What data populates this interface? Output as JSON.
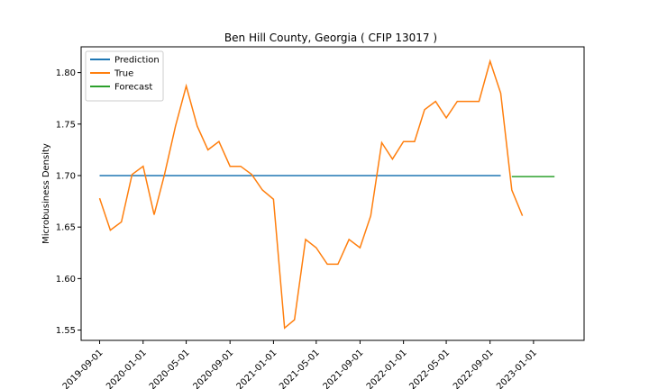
{
  "chart_data": {
    "type": "line",
    "title": "Ben Hill County, Georgia ( CFIP 13017 )",
    "xlabel": "",
    "ylabel": "Microbusiness Density",
    "ylim": [
      1.54,
      1.825
    ],
    "xlim": [
      "2019-07-11",
      "2023-05-23"
    ],
    "grid": false,
    "legend_position": "top-left",
    "x_ticks": [
      "2019-09-01",
      "2020-01-01",
      "2020-05-01",
      "2020-09-01",
      "2021-01-01",
      "2021-05-01",
      "2021-09-01",
      "2022-01-01",
      "2022-05-01",
      "2022-09-01",
      "2023-01-01"
    ],
    "y_ticks": [
      "1.55",
      "1.60",
      "1.65",
      "1.70",
      "1.75",
      "1.80"
    ],
    "series": [
      {
        "name": "Prediction",
        "color": "#1f77b4",
        "points": [
          [
            "2019-09-01",
            1.7
          ],
          [
            "2022-10-01",
            1.7
          ]
        ]
      },
      {
        "name": "True",
        "color": "#ff7f0e",
        "points": [
          [
            "2019-09-01",
            1.678
          ],
          [
            "2019-10-01",
            1.647
          ],
          [
            "2019-11-01",
            1.655
          ],
          [
            "2019-12-01",
            1.701
          ],
          [
            "2020-01-01",
            1.709
          ],
          [
            "2020-02-01",
            1.662
          ],
          [
            "2020-03-01",
            1.701
          ],
          [
            "2020-04-01",
            1.748
          ],
          [
            "2020-05-01",
            1.787
          ],
          [
            "2020-06-01",
            1.748
          ],
          [
            "2020-07-01",
            1.725
          ],
          [
            "2020-08-01",
            1.733
          ],
          [
            "2020-09-01",
            1.709
          ],
          [
            "2020-10-01",
            1.709
          ],
          [
            "2020-11-01",
            1.701
          ],
          [
            "2020-12-01",
            1.686
          ],
          [
            "2021-01-01",
            1.677
          ],
          [
            "2021-02-01",
            1.552
          ],
          [
            "2021-03-01",
            1.56
          ],
          [
            "2021-04-01",
            1.638
          ],
          [
            "2021-05-01",
            1.63
          ],
          [
            "2021-06-01",
            1.614
          ],
          [
            "2021-07-01",
            1.614
          ],
          [
            "2021-08-01",
            1.638
          ],
          [
            "2021-09-01",
            1.63
          ],
          [
            "2021-10-01",
            1.661
          ],
          [
            "2021-11-01",
            1.732
          ],
          [
            "2021-12-01",
            1.716
          ],
          [
            "2022-01-01",
            1.733
          ],
          [
            "2022-02-01",
            1.733
          ],
          [
            "2022-03-01",
            1.764
          ],
          [
            "2022-04-01",
            1.772
          ],
          [
            "2022-05-01",
            1.756
          ],
          [
            "2022-06-01",
            1.772
          ],
          [
            "2022-07-01",
            1.772
          ],
          [
            "2022-08-01",
            1.772
          ],
          [
            "2022-09-01",
            1.811
          ],
          [
            "2022-10-01",
            1.78
          ],
          [
            "2022-11-01",
            1.686
          ],
          [
            "2022-12-01",
            1.661
          ]
        ]
      },
      {
        "name": "Forecast",
        "color": "#2ca02c",
        "points": [
          [
            "2022-11-01",
            1.699
          ],
          [
            "2023-01-01",
            1.699
          ],
          [
            "2023-03-01",
            1.699
          ]
        ]
      }
    ]
  }
}
